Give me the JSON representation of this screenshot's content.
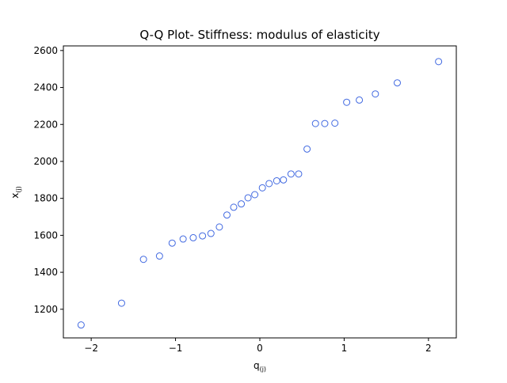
{
  "chart_data": {
    "type": "scatter",
    "title": "Q-Q Plot- Stiffness: modulus of elasticity",
    "xlabel_base": "q",
    "xlabel_sub": "(j)",
    "ylabel_base": "x",
    "ylabel_sub": "(j)",
    "xlim": [
      -2.33,
      2.33
    ],
    "ylim": [
      1045,
      2625
    ],
    "xticks": [
      -2,
      -1,
      0,
      1,
      2
    ],
    "xtick_labels": [
      "−2",
      "−1",
      "0",
      "1",
      "2"
    ],
    "yticks": [
      1200,
      1400,
      1600,
      1800,
      2000,
      2200,
      2400,
      2600
    ],
    "ytick_labels": [
      "1200",
      "1400",
      "1600",
      "1800",
      "2000",
      "2200",
      "2400",
      "2600"
    ],
    "grid": false,
    "marker": "open-circle",
    "marker_color": "#4169e1",
    "points": [
      {
        "x": -2.12,
        "y": 1115
      },
      {
        "x": -1.64,
        "y": 1233
      },
      {
        "x": -1.38,
        "y": 1470
      },
      {
        "x": -1.19,
        "y": 1488
      },
      {
        "x": -1.04,
        "y": 1558
      },
      {
        "x": -0.91,
        "y": 1580
      },
      {
        "x": -0.79,
        "y": 1587
      },
      {
        "x": -0.68,
        "y": 1597
      },
      {
        "x": -0.58,
        "y": 1610
      },
      {
        "x": -0.48,
        "y": 1645
      },
      {
        "x": -0.39,
        "y": 1710
      },
      {
        "x": -0.31,
        "y": 1752
      },
      {
        "x": -0.22,
        "y": 1770
      },
      {
        "x": -0.14,
        "y": 1803
      },
      {
        "x": -0.06,
        "y": 1820
      },
      {
        "x": 0.03,
        "y": 1857
      },
      {
        "x": 0.11,
        "y": 1880
      },
      {
        "x": 0.2,
        "y": 1895
      },
      {
        "x": 0.28,
        "y": 1900
      },
      {
        "x": 0.37,
        "y": 1932
      },
      {
        "x": 0.46,
        "y": 1932
      },
      {
        "x": 0.56,
        "y": 2067
      },
      {
        "x": 0.66,
        "y": 2205
      },
      {
        "x": 0.77,
        "y": 2205
      },
      {
        "x": 0.89,
        "y": 2207
      },
      {
        "x": 1.03,
        "y": 2320
      },
      {
        "x": 1.18,
        "y": 2332
      },
      {
        "x": 1.37,
        "y": 2365
      },
      {
        "x": 1.63,
        "y": 2425
      },
      {
        "x": 2.12,
        "y": 2540
      }
    ]
  }
}
